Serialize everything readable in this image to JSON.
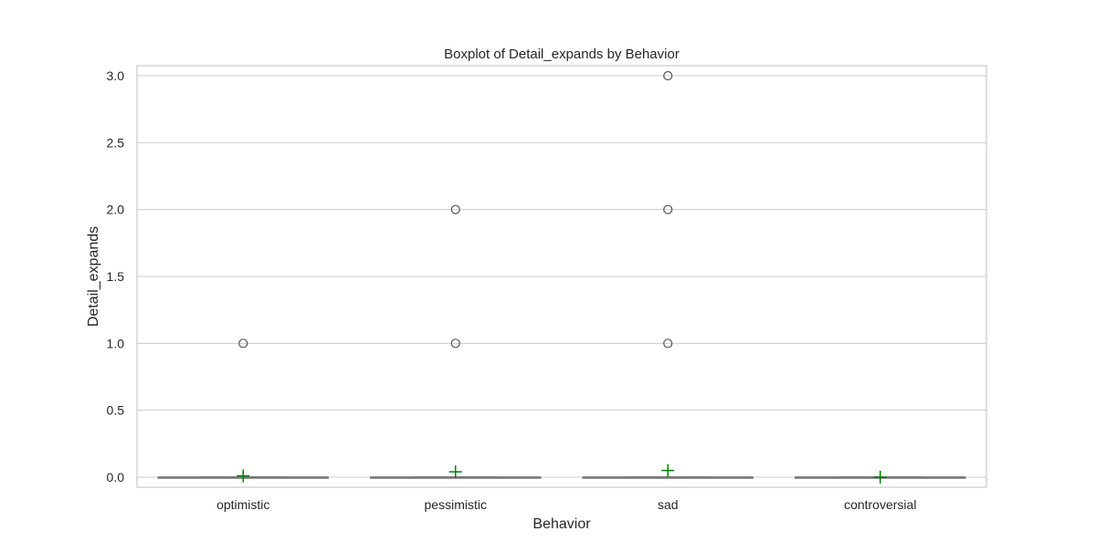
{
  "chart_data": {
    "type": "box",
    "title": "Boxplot of Detail_expands by Behavior",
    "xlabel": "Behavior",
    "ylabel": "Detail_expands",
    "categories": [
      "optimistic",
      "pessimistic",
      "sad",
      "controversial"
    ],
    "yticks": [
      "0.0",
      "0.5",
      "1.0",
      "1.5",
      "2.0",
      "2.5",
      "3.0"
    ],
    "ylim": [
      -0.075,
      3.075
    ],
    "grid": true,
    "boxes": [
      {
        "category": "optimistic",
        "min": 0,
        "q1": 0,
        "median": 0,
        "q3": 0,
        "max": 0,
        "mean": 0.01,
        "outliers": [
          1
        ]
      },
      {
        "category": "pessimistic",
        "min": 0,
        "q1": 0,
        "median": 0,
        "q3": 0,
        "max": 0,
        "mean": 0.04,
        "outliers": [
          1,
          2
        ]
      },
      {
        "category": "sad",
        "min": 0,
        "q1": 0,
        "median": 0,
        "q3": 0,
        "max": 0,
        "mean": 0.05,
        "outliers": [
          1,
          2,
          3
        ]
      },
      {
        "category": "controversial",
        "min": 0,
        "q1": 0,
        "median": 0,
        "q3": 0,
        "max": 0,
        "mean": 0.0,
        "outliers": []
      }
    ],
    "colors": {
      "frame": "#cccccc",
      "grid": "#cccccc",
      "box_line": "#777777",
      "outlier": "#555555",
      "mean_marker": "#008000"
    },
    "mean_marker_shape": "plus"
  }
}
